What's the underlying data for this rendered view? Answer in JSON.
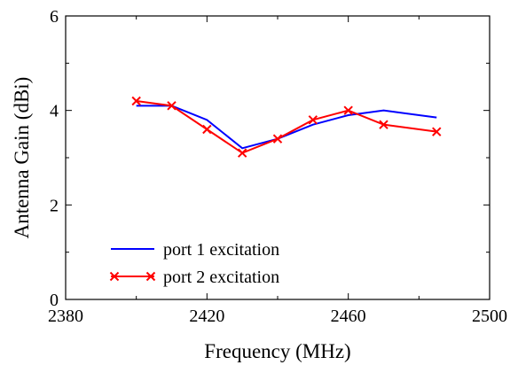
{
  "chart_data": {
    "type": "line",
    "xlabel": "Frequency (MHz)",
    "ylabel": "Antenna Gain (dBi)",
    "xlim": [
      2380,
      2500
    ],
    "ylim": [
      0,
      6
    ],
    "xticks": [
      "2380",
      "2420",
      "2460",
      "2500"
    ],
    "yticks": [
      "0",
      "2",
      "4",
      "6"
    ],
    "grid": false,
    "legend_position": "bottom-left",
    "series": [
      {
        "name": "port 1 excitation",
        "color": "#0000ff",
        "marker": "none",
        "x": [
          2400,
          2410,
          2420,
          2430,
          2440,
          2450,
          2460,
          2470,
          2485
        ],
        "y": [
          4.1,
          4.1,
          3.8,
          3.2,
          3.4,
          3.7,
          3.9,
          4.0,
          3.85
        ]
      },
      {
        "name": "port 2 excitation",
        "color": "#ff0000",
        "marker": "x",
        "x": [
          2400,
          2410,
          2420,
          2430,
          2440,
          2450,
          2460,
          2470,
          2485
        ],
        "y": [
          4.2,
          4.1,
          3.6,
          3.1,
          3.4,
          3.8,
          4.0,
          3.7,
          3.55
        ]
      }
    ]
  }
}
